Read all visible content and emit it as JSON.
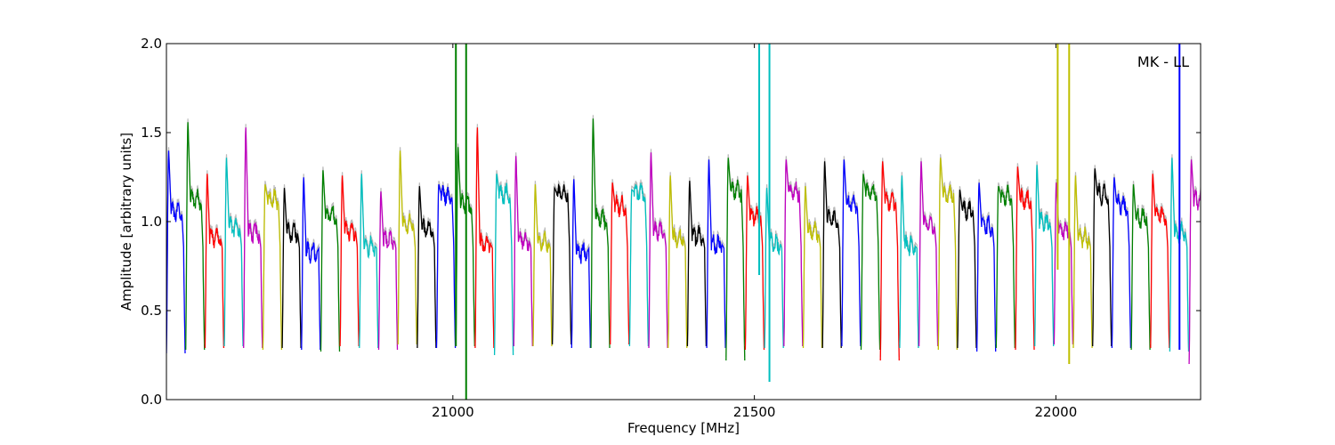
{
  "chart_data": {
    "type": "line",
    "title": "",
    "xlabel": "Frequency [MHz]",
    "ylabel": "Amplitude [arbitrary units]",
    "annotation": "MK - LL",
    "xlim": [
      20525,
      22240
    ],
    "ylim": [
      0.0,
      2.0
    ],
    "xticks": [
      21000,
      21500,
      22000
    ],
    "yticks": [
      0.0,
      0.5,
      1.0,
      1.5,
      2.0
    ],
    "ytick_labels": [
      "0.0",
      "0.5",
      "1.0",
      "1.5",
      "2.0"
    ],
    "grid": false,
    "legend": "none",
    "colors": {
      "background_trace": "#bbbbbb",
      "cycle": [
        "#0000ff",
        "#008000",
        "#ff0000",
        "#00bfbf",
        "#bf00bf",
        "#bfbf00",
        "#000000"
      ]
    },
    "channel_width_mhz": 32,
    "channel_count": 54,
    "channel_start_mhz": 20525,
    "channel_peaks": [
      1.4,
      1.56,
      1.27,
      1.36,
      1.53,
      1.21,
      1.19,
      1.25,
      1.29,
      1.26,
      1.27,
      1.17,
      1.4,
      1.2,
      1.21,
      1.42,
      1.53,
      1.27,
      1.37,
      1.21,
      1.19,
      1.24,
      1.58,
      1.22,
      1.18,
      1.39,
      1.26,
      1.23,
      1.35,
      1.36,
      1.26,
      1.19,
      1.35,
      1.2,
      1.34,
      1.35,
      1.27,
      1.34,
      1.26,
      1.34,
      1.36,
      1.18,
      1.22,
      1.2,
      1.31,
      1.32,
      1.22,
      1.26,
      1.3,
      1.25,
      1.21,
      1.27,
      1.36,
      1.35
    ],
    "channel_floors": [
      0.26,
      0.28,
      0.29,
      0.3,
      0.29,
      0.28,
      0.29,
      0.28,
      0.27,
      0.3,
      0.29,
      0.28,
      0.31,
      0.29,
      0.29,
      0.3,
      0.29,
      0.25,
      0.3,
      0.3,
      0.31,
      0.29,
      0.29,
      0.31,
      0.3,
      0.29,
      0.29,
      0.3,
      0.29,
      0.22,
      0.28,
      0.29,
      0.3,
      0.29,
      0.29,
      0.3,
      0.28,
      0.22,
      0.29,
      0.3,
      0.28,
      0.29,
      0.27,
      0.29,
      0.28,
      0.3,
      0.31,
      0.29,
      0.3,
      0.29,
      0.28,
      0.29,
      0.27,
      0.2
    ],
    "spikes": [
      {
        "x": 21005,
        "y_top": 2.0,
        "y_bottom": 0.3,
        "color": "#008000"
      },
      {
        "x": 21022,
        "y_top": 2.0,
        "y_bottom": 0.0,
        "color": "#008000"
      },
      {
        "x": 21525,
        "y_top": 2.0,
        "y_bottom": 0.1,
        "color": "#00bfbf"
      },
      {
        "x": 21508,
        "y_top": 2.0,
        "y_bottom": 0.7,
        "color": "#00bfbf"
      },
      {
        "x": 22003,
        "y_top": 2.0,
        "y_bottom": 0.73,
        "color": "#bfbf00"
      },
      {
        "x": 22022,
        "y_top": 2.0,
        "y_bottom": 0.2,
        "color": "#bfbf00"
      },
      {
        "x": 22205,
        "y_top": 2.0,
        "y_bottom": 0.28,
        "color": "#0000ff"
      }
    ]
  }
}
